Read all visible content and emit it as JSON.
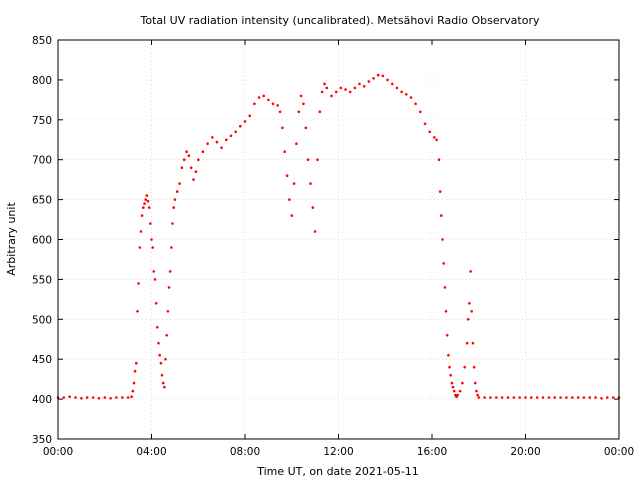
{
  "chart_data": {
    "type": "scatter",
    "title": "Total UV radiation intensity (uncalibrated). Metsähovi Radio Observatory",
    "xlabel": "Time UT, on date 2021-05-11",
    "ylabel": "Arbitrary unit",
    "xlim": [
      0,
      24
    ],
    "ylim": [
      350,
      850
    ],
    "x_unit": "hours UT",
    "xticks": [
      0,
      4,
      8,
      12,
      16,
      20,
      24
    ],
    "xtick_labels": [
      "00:00",
      "04:00",
      "08:00",
      "12:00",
      "16:00",
      "20:00",
      "00:00"
    ],
    "yticks": [
      350,
      400,
      450,
      500,
      550,
      600,
      650,
      700,
      750,
      800,
      850
    ],
    "grid": true,
    "legend": "none",
    "series": [
      {
        "color": "#ff0000",
        "marker": "dot",
        "points": [
          [
            0.0,
            402
          ],
          [
            0.25,
            402
          ],
          [
            0.5,
            403
          ],
          [
            0.75,
            402
          ],
          [
            1.0,
            401
          ],
          [
            1.25,
            402
          ],
          [
            1.5,
            402
          ],
          [
            1.75,
            401
          ],
          [
            2.0,
            402
          ],
          [
            2.25,
            401
          ],
          [
            2.5,
            402
          ],
          [
            2.75,
            402
          ],
          [
            3.0,
            402
          ],
          [
            3.15,
            403
          ],
          [
            3.2,
            410
          ],
          [
            3.25,
            420
          ],
          [
            3.3,
            435
          ],
          [
            3.35,
            445
          ],
          [
            3.4,
            510
          ],
          [
            3.45,
            545
          ],
          [
            3.5,
            590
          ],
          [
            3.55,
            610
          ],
          [
            3.6,
            630
          ],
          [
            3.65,
            640
          ],
          [
            3.7,
            645
          ],
          [
            3.75,
            650
          ],
          [
            3.8,
            655
          ],
          [
            3.85,
            648
          ],
          [
            3.9,
            640
          ],
          [
            3.95,
            620
          ],
          [
            4.0,
            600
          ],
          [
            4.05,
            590
          ],
          [
            4.1,
            560
          ],
          [
            4.15,
            550
          ],
          [
            4.2,
            520
          ],
          [
            4.25,
            490
          ],
          [
            4.3,
            470
          ],
          [
            4.35,
            455
          ],
          [
            4.4,
            445
          ],
          [
            4.45,
            430
          ],
          [
            4.5,
            420
          ],
          [
            4.55,
            415
          ],
          [
            4.6,
            450
          ],
          [
            4.65,
            480
          ],
          [
            4.7,
            510
          ],
          [
            4.75,
            540
          ],
          [
            4.8,
            560
          ],
          [
            4.85,
            590
          ],
          [
            4.9,
            620
          ],
          [
            4.95,
            640
          ],
          [
            5.0,
            650
          ],
          [
            5.1,
            660
          ],
          [
            5.2,
            670
          ],
          [
            5.3,
            690
          ],
          [
            5.4,
            700
          ],
          [
            5.5,
            710
          ],
          [
            5.6,
            705
          ],
          [
            5.7,
            690
          ],
          [
            5.8,
            675
          ],
          [
            5.9,
            685
          ],
          [
            6.0,
            700
          ],
          [
            6.2,
            710
          ],
          [
            6.4,
            720
          ],
          [
            6.6,
            728
          ],
          [
            6.8,
            722
          ],
          [
            7.0,
            715
          ],
          [
            7.2,
            725
          ],
          [
            7.4,
            730
          ],
          [
            7.6,
            735
          ],
          [
            7.8,
            742
          ],
          [
            8.0,
            748
          ],
          [
            8.2,
            755
          ],
          [
            8.4,
            770
          ],
          [
            8.6,
            778
          ],
          [
            8.8,
            780
          ],
          [
            9.0,
            775
          ],
          [
            9.2,
            770
          ],
          [
            9.4,
            768
          ],
          [
            9.5,
            760
          ],
          [
            9.6,
            740
          ],
          [
            9.7,
            710
          ],
          [
            9.8,
            680
          ],
          [
            9.9,
            650
          ],
          [
            10.0,
            630
          ],
          [
            10.1,
            670
          ],
          [
            10.2,
            720
          ],
          [
            10.3,
            760
          ],
          [
            10.4,
            780
          ],
          [
            10.5,
            770
          ],
          [
            10.6,
            740
          ],
          [
            10.7,
            700
          ],
          [
            10.8,
            670
          ],
          [
            10.9,
            640
          ],
          [
            11.0,
            610
          ],
          [
            11.1,
            700
          ],
          [
            11.2,
            760
          ],
          [
            11.3,
            785
          ],
          [
            11.4,
            795
          ],
          [
            11.5,
            790
          ],
          [
            11.7,
            780
          ],
          [
            11.9,
            785
          ],
          [
            12.1,
            790
          ],
          [
            12.3,
            788
          ],
          [
            12.5,
            785
          ],
          [
            12.7,
            790
          ],
          [
            12.9,
            795
          ],
          [
            13.1,
            792
          ],
          [
            13.3,
            798
          ],
          [
            13.5,
            802
          ],
          [
            13.7,
            806
          ],
          [
            13.9,
            805
          ],
          [
            14.1,
            800
          ],
          [
            14.3,
            795
          ],
          [
            14.5,
            790
          ],
          [
            14.7,
            785
          ],
          [
            14.9,
            782
          ],
          [
            15.1,
            778
          ],
          [
            15.3,
            770
          ],
          [
            15.5,
            760
          ],
          [
            15.7,
            745
          ],
          [
            15.9,
            735
          ],
          [
            16.1,
            728
          ],
          [
            16.2,
            725
          ],
          [
            16.3,
            700
          ],
          [
            16.35,
            660
          ],
          [
            16.4,
            630
          ],
          [
            16.45,
            600
          ],
          [
            16.5,
            570
          ],
          [
            16.55,
            540
          ],
          [
            16.6,
            510
          ],
          [
            16.65,
            480
          ],
          [
            16.7,
            455
          ],
          [
            16.75,
            440
          ],
          [
            16.8,
            430
          ],
          [
            16.85,
            420
          ],
          [
            16.9,
            415
          ],
          [
            16.95,
            410
          ],
          [
            17.0,
            405
          ],
          [
            17.05,
            403
          ],
          [
            17.1,
            405
          ],
          [
            17.2,
            410
          ],
          [
            17.3,
            420
          ],
          [
            17.4,
            440
          ],
          [
            17.5,
            470
          ],
          [
            17.55,
            500
          ],
          [
            17.6,
            520
          ],
          [
            17.65,
            560
          ],
          [
            17.7,
            510
          ],
          [
            17.75,
            470
          ],
          [
            17.8,
            440
          ],
          [
            17.85,
            420
          ],
          [
            17.9,
            410
          ],
          [
            17.95,
            405
          ],
          [
            18.0,
            402
          ],
          [
            18.25,
            402
          ],
          [
            18.5,
            402
          ],
          [
            18.75,
            402
          ],
          [
            19.0,
            402
          ],
          [
            19.25,
            402
          ],
          [
            19.5,
            402
          ],
          [
            19.75,
            402
          ],
          [
            20.0,
            402
          ],
          [
            20.25,
            402
          ],
          [
            20.5,
            402
          ],
          [
            20.75,
            402
          ],
          [
            21.0,
            402
          ],
          [
            21.25,
            402
          ],
          [
            21.5,
            402
          ],
          [
            21.75,
            402
          ],
          [
            22.0,
            402
          ],
          [
            22.25,
            402
          ],
          [
            22.5,
            402
          ],
          [
            22.75,
            402
          ],
          [
            23.0,
            402
          ],
          [
            23.25,
            401
          ],
          [
            23.5,
            402
          ],
          [
            23.75,
            402
          ],
          [
            24.0,
            402
          ]
        ]
      }
    ]
  }
}
